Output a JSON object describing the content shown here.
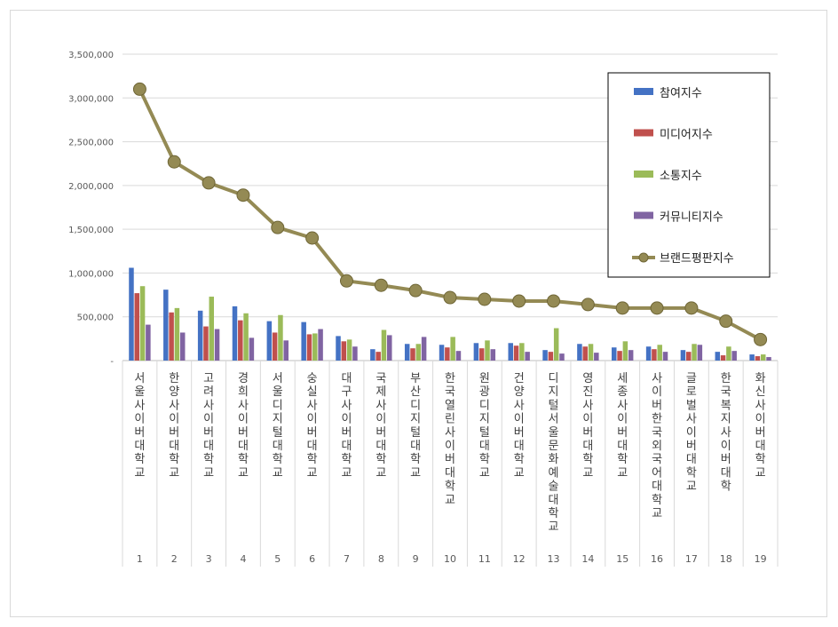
{
  "chart_data": {
    "type": "bar",
    "ylim": [
      0,
      3500000
    ],
    "yticks": [
      0,
      500000,
      1000000,
      1500000,
      2000000,
      2500000,
      3000000,
      3500000
    ],
    "ytick_labels": [
      "-",
      "500,000",
      "1,000,000",
      "1,500,000",
      "2,000,000",
      "2,500,000",
      "3,000,000",
      "3,500,000"
    ],
    "grid": true,
    "legend_position": "top-right",
    "ranks": [
      "1",
      "2",
      "3",
      "4",
      "5",
      "6",
      "7",
      "8",
      "9",
      "10",
      "11",
      "12",
      "13",
      "14",
      "15",
      "16",
      "17",
      "18",
      "19"
    ],
    "categories": [
      "서울사이버대학교",
      "한양사이버대학교",
      "고려사이버대학교",
      "경희사이버대학교",
      "서울디지털대학교",
      "숭실사이버대학교",
      "대구사이버대학교",
      "국제사이버대학교",
      "부산디지털대학교",
      "한국열린사이버대학교",
      "원광디지털대학교",
      "건양사이버대학교",
      "디지털서울문화예술대학교",
      "영진사이버대학교",
      "세종사이버대학교",
      "사이버한국외국어대학교",
      "글로벌사이버대학교",
      "한국복지사이버대학",
      "화신사이버대학교"
    ],
    "series": [
      {
        "name": "참여지수",
        "kind": "bar",
        "color": "#4472c4",
        "values": [
          1060000,
          810000,
          570000,
          620000,
          450000,
          440000,
          280000,
          130000,
          190000,
          180000,
          200000,
          200000,
          120000,
          190000,
          150000,
          160000,
          120000,
          100000,
          70000
        ]
      },
      {
        "name": "미디어지수",
        "kind": "bar",
        "color": "#c0504d",
        "values": [
          770000,
          550000,
          390000,
          460000,
          320000,
          300000,
          220000,
          100000,
          140000,
          150000,
          140000,
          170000,
          100000,
          160000,
          110000,
          130000,
          100000,
          60000,
          50000
        ]
      },
      {
        "name": "소통지수",
        "kind": "bar",
        "color": "#9bbb59",
        "values": [
          850000,
          600000,
          730000,
          540000,
          520000,
          310000,
          240000,
          350000,
          190000,
          270000,
          230000,
          200000,
          370000,
          190000,
          220000,
          180000,
          190000,
          160000,
          70000
        ]
      },
      {
        "name": "커뮤니티지수",
        "kind": "bar",
        "color": "#8064a2",
        "values": [
          410000,
          320000,
          360000,
          260000,
          230000,
          360000,
          160000,
          290000,
          270000,
          110000,
          130000,
          100000,
          80000,
          90000,
          120000,
          100000,
          180000,
          110000,
          40000
        ]
      },
      {
        "name": "브랜드평판지수",
        "kind": "line",
        "color": "#948a54",
        "values": [
          3100000,
          2270000,
          2030000,
          1890000,
          1520000,
          1400000,
          910000,
          860000,
          800000,
          720000,
          700000,
          680000,
          680000,
          640000,
          600000,
          600000,
          600000,
          450000,
          240000
        ]
      }
    ]
  }
}
